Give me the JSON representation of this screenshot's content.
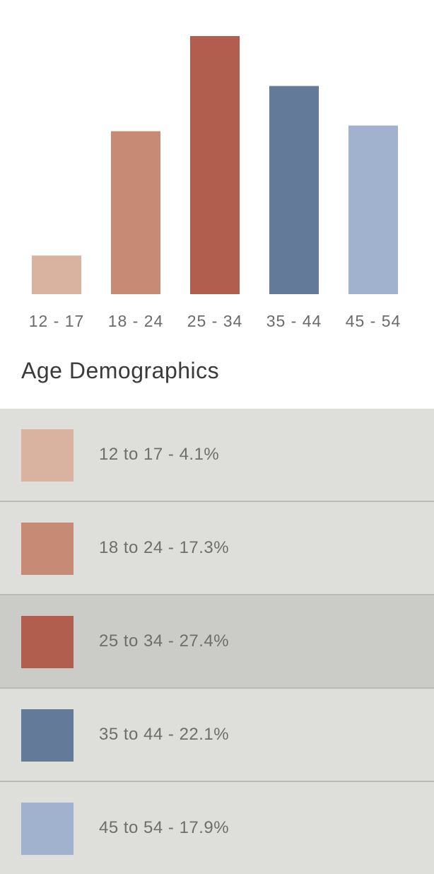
{
  "chart_data": {
    "type": "bar",
    "title": "Age Demographics",
    "categories": [
      "12 - 17",
      "18 - 24",
      "25 - 34",
      "35 - 44",
      "45 - 54"
    ],
    "values": [
      4.1,
      17.3,
      27.4,
      22.1,
      17.9
    ],
    "colors": [
      "#d9b2a0",
      "#c68a75",
      "#b25e4f",
      "#637a99",
      "#a1b2cf"
    ],
    "ylim": [
      0,
      27.4
    ],
    "grid": false,
    "legend_position": "bottom"
  },
  "legend": {
    "items": [
      {
        "label": "12 to 17 - 4.1%",
        "color": "#d9b2a0"
      },
      {
        "label": "18 to 24 - 17.3%",
        "color": "#c68a75"
      },
      {
        "label": "25 to 34 - 27.4%",
        "color": "#b25e4f",
        "active": true
      },
      {
        "label": "35 to 44 - 22.1%",
        "color": "#637a99"
      },
      {
        "label": "45 to 54 - 17.9%",
        "color": "#a1b2cf"
      }
    ]
  }
}
